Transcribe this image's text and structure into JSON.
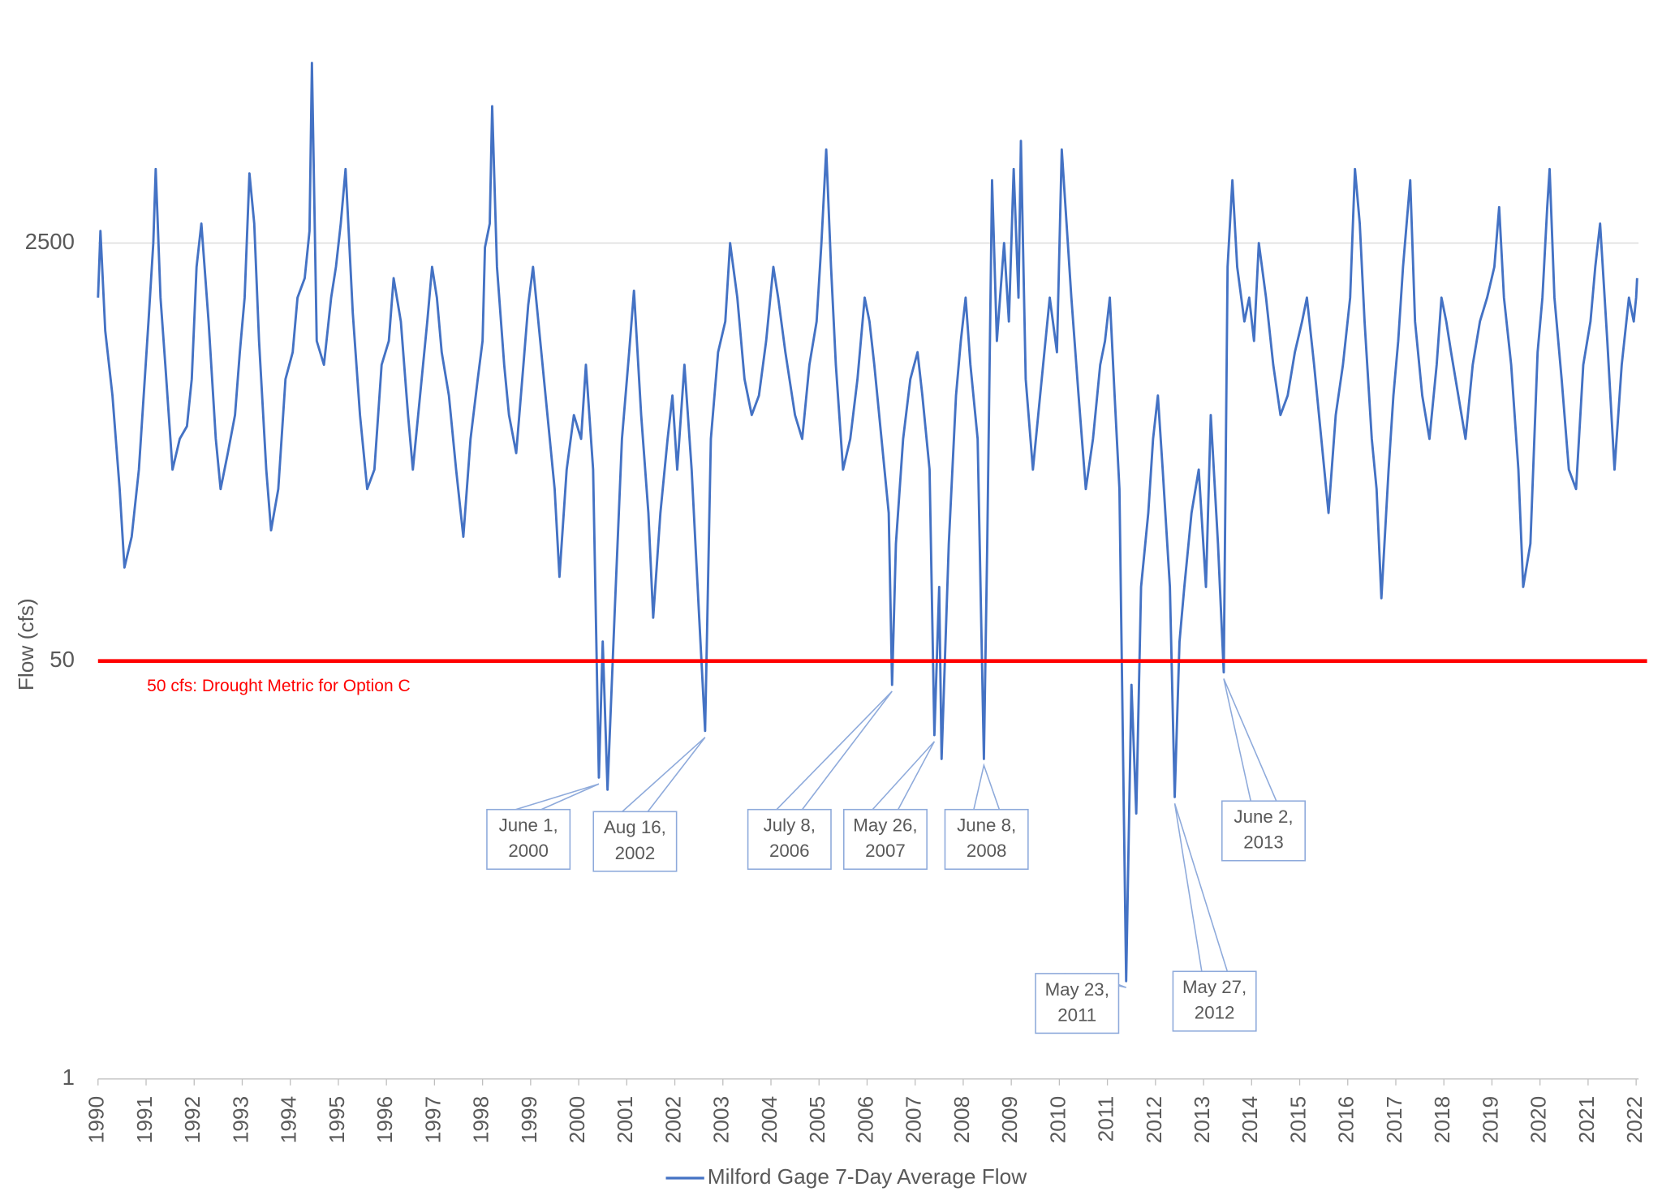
{
  "chart_data": {
    "type": "line",
    "y_label": "Flow (cfs)",
    "log_scale": true,
    "grid": true,
    "legend": "bottom",
    "ylim": [
      1,
      16000
    ],
    "yticks": [
      1,
      50,
      2500
    ],
    "xlim": [
      1990,
      2022.05
    ],
    "xticks": [
      1990,
      1991,
      1992,
      1993,
      1994,
      1995,
      1996,
      1997,
      1998,
      1999,
      2000,
      2001,
      2002,
      2003,
      2004,
      2005,
      2006,
      2007,
      2008,
      2009,
      2010,
      2011,
      2012,
      2013,
      2014,
      2015,
      2016,
      2017,
      2018,
      2019,
      2020,
      2021,
      2022
    ],
    "reference_line": {
      "value": 50,
      "label": "50 cfs: Drought Metric for Option C",
      "color": "#ff0000"
    },
    "x": [
      1990.0,
      1990.05,
      1990.15,
      1990.3,
      1990.45,
      1990.55,
      1990.7,
      1990.85,
      1990.95,
      1991.05,
      1991.15,
      1991.2,
      1991.3,
      1991.4,
      1991.55,
      1991.7,
      1991.85,
      1991.95,
      1992.05,
      1992.15,
      1992.3,
      1992.45,
      1992.55,
      1992.7,
      1992.85,
      1992.95,
      1993.05,
      1993.15,
      1993.25,
      1993.35,
      1993.5,
      1993.6,
      1993.75,
      1993.9,
      1994.05,
      1994.15,
      1994.3,
      1994.4,
      1994.45,
      1994.55,
      1994.7,
      1994.85,
      1994.95,
      1995.05,
      1995.15,
      1995.3,
      1995.45,
      1995.6,
      1995.75,
      1995.9,
      1996.05,
      1996.15,
      1996.3,
      1996.45,
      1996.55,
      1996.7,
      1996.85,
      1996.95,
      1997.05,
      1997.15,
      1997.3,
      1997.45,
      1997.6,
      1997.75,
      1997.9,
      1998.0,
      1998.05,
      1998.15,
      1998.2,
      1998.3,
      1998.45,
      1998.55,
      1998.7,
      1998.85,
      1998.95,
      1999.05,
      1999.2,
      1999.35,
      1999.5,
      1999.6,
      1999.75,
      1999.9,
      2000.05,
      2000.15,
      2000.3,
      2000.42,
      2000.5,
      2000.6,
      2000.75,
      2000.9,
      2001.05,
      2001.15,
      2001.3,
      2001.45,
      2001.55,
      2001.7,
      2001.85,
      2001.95,
      2002.05,
      2002.2,
      2002.35,
      2002.5,
      2002.63,
      2002.75,
      2002.9,
      2003.05,
      2003.15,
      2003.3,
      2003.45,
      2003.6,
      2003.75,
      2003.9,
      2004.05,
      2004.15,
      2004.3,
      2004.5,
      2004.65,
      2004.8,
      2004.95,
      2005.05,
      2005.15,
      2005.25,
      2005.35,
      2005.5,
      2005.65,
      2005.8,
      2005.95,
      2006.05,
      2006.15,
      2006.3,
      2006.45,
      2006.52,
      2006.6,
      2006.75,
      2006.9,
      2007.05,
      2007.15,
      2007.3,
      2007.4,
      2007.5,
      2007.55,
      2007.7,
      2007.85,
      2007.95,
      2008.05,
      2008.15,
      2008.3,
      2008.43,
      2008.5,
      2008.6,
      2008.7,
      2008.85,
      2008.95,
      2009.05,
      2009.15,
      2009.2,
      2009.3,
      2009.45,
      2009.6,
      2009.8,
      2009.95,
      2010.05,
      2010.15,
      2010.25,
      2010.4,
      2010.55,
      2010.7,
      2010.85,
      2010.95,
      2011.05,
      2011.15,
      2011.25,
      2011.39,
      2011.5,
      2011.6,
      2011.7,
      2011.85,
      2011.95,
      2012.05,
      2012.15,
      2012.3,
      2012.4,
      2012.5,
      2012.6,
      2012.75,
      2012.9,
      2013.05,
      2013.15,
      2013.3,
      2013.42,
      2013.5,
      2013.6,
      2013.7,
      2013.85,
      2013.95,
      2014.05,
      2014.15,
      2014.3,
      2014.45,
      2014.6,
      2014.75,
      2014.9,
      2015.05,
      2015.15,
      2015.3,
      2015.45,
      2015.6,
      2015.75,
      2015.9,
      2016.05,
      2016.15,
      2016.25,
      2016.35,
      2016.5,
      2016.6,
      2016.7,
      2016.85,
      2016.95,
      2017.05,
      2017.15,
      2017.3,
      2017.4,
      2017.55,
      2017.7,
      2017.85,
      2017.95,
      2018.05,
      2018.15,
      2018.3,
      2018.45,
      2018.6,
      2018.75,
      2018.9,
      2019.05,
      2019.15,
      2019.25,
      2019.4,
      2019.55,
      2019.65,
      2019.8,
      2019.95,
      2020.05,
      2020.15,
      2020.2,
      2020.3,
      2020.45,
      2020.6,
      2020.75,
      2020.9,
      2021.05,
      2021.15,
      2021.25,
      2021.4,
      2021.55,
      2021.7,
      2021.85,
      2021.95,
      2022.0,
      2022.02
    ],
    "series": [
      {
        "name": "Milford Gage 7-Day Average Flow",
        "color": "#4472c4",
        "values": [
          1500,
          2800,
          1100,
          600,
          250,
          120,
          160,
          300,
          600,
          1200,
          2500,
          5000,
          1500,
          800,
          300,
          400,
          450,
          700,
          2000,
          3000,
          1200,
          400,
          250,
          350,
          500,
          900,
          1500,
          4800,
          3000,
          1000,
          300,
          170,
          250,
          700,
          900,
          1500,
          1800,
          2800,
          13500,
          1000,
          800,
          1500,
          2000,
          3000,
          5000,
          1300,
          500,
          250,
          300,
          800,
          1000,
          1800,
          1200,
          500,
          300,
          600,
          1200,
          2000,
          1500,
          900,
          600,
          300,
          160,
          400,
          700,
          1000,
          2400,
          3000,
          9000,
          2000,
          800,
          500,
          350,
          800,
          1400,
          2000,
          1000,
          500,
          250,
          110,
          300,
          500,
          400,
          800,
          300,
          16.8,
          60,
          15,
          80,
          400,
          900,
          1600,
          500,
          200,
          75,
          200,
          400,
          600,
          300,
          800,
          300,
          80,
          26,
          400,
          900,
          1200,
          2500,
          1500,
          700,
          500,
          600,
          1000,
          2000,
          1500,
          900,
          500,
          400,
          800,
          1200,
          2500,
          6000,
          2000,
          800,
          300,
          400,
          700,
          1500,
          1200,
          800,
          400,
          200,
          40,
          150,
          400,
          700,
          900,
          600,
          300,
          25,
          100,
          20,
          150,
          600,
          1000,
          1500,
          800,
          400,
          20,
          150,
          4500,
          1000,
          2500,
          1200,
          5000,
          1500,
          6500,
          700,
          300,
          600,
          1500,
          900,
          6000,
          3000,
          1500,
          600,
          250,
          400,
          800,
          1000,
          1500,
          600,
          250,
          2.5,
          40,
          12,
          100,
          200,
          400,
          600,
          300,
          100,
          14,
          60,
          100,
          200,
          300,
          100,
          500,
          150,
          45,
          2000,
          4500,
          2000,
          1200,
          1500,
          1000,
          2500,
          1500,
          800,
          500,
          600,
          900,
          1200,
          1500,
          800,
          400,
          200,
          500,
          800,
          1500,
          5000,
          3000,
          1200,
          400,
          250,
          90,
          300,
          600,
          1000,
          2000,
          4500,
          1200,
          600,
          400,
          800,
          1500,
          1200,
          900,
          600,
          400,
          800,
          1200,
          1500,
          2000,
          3500,
          1500,
          800,
          300,
          100,
          150,
          900,
          1500,
          3500,
          5000,
          1500,
          700,
          300,
          250,
          800,
          1200,
          2000,
          3000,
          1000,
          300,
          800,
          1500,
          1200,
          1500,
          1800
        ]
      }
    ],
    "annotations": [
      {
        "lines": [
          "June 1,",
          "2000"
        ],
        "x": 2000.42,
        "y": 16.8
      },
      {
        "lines": [
          "Aug 16,",
          "2002"
        ],
        "x": 2002.63,
        "y": 26
      },
      {
        "lines": [
          "July 8,",
          "2006"
        ],
        "x": 2006.52,
        "y": 40
      },
      {
        "lines": [
          "May 26,",
          "2007"
        ],
        "x": 2007.4,
        "y": 25
      },
      {
        "lines": [
          "June 8,",
          "2008"
        ],
        "x": 2008.43,
        "y": 20
      },
      {
        "lines": [
          "May 23,",
          "2011"
        ],
        "x": 2011.39,
        "y": 2.5
      },
      {
        "lines": [
          "May 27,",
          "2012"
        ],
        "x": 2012.4,
        "y": 14
      },
      {
        "lines": [
          "June 2,",
          "2013"
        ],
        "x": 2013.42,
        "y": 45
      }
    ]
  }
}
